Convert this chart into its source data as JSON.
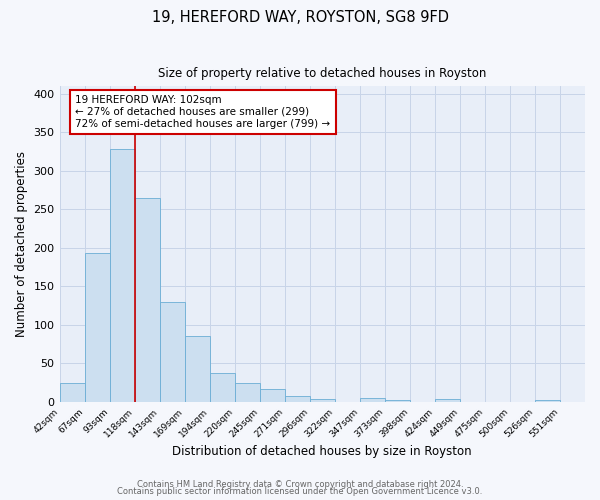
{
  "title": "19, HEREFORD WAY, ROYSTON, SG8 9FD",
  "subtitle": "Size of property relative to detached houses in Royston",
  "xlabel": "Distribution of detached houses by size in Royston",
  "ylabel": "Number of detached properties",
  "bar_labels": [
    "42sqm",
    "67sqm",
    "93sqm",
    "118sqm",
    "143sqm",
    "169sqm",
    "194sqm",
    "220sqm",
    "245sqm",
    "271sqm",
    "296sqm",
    "322sqm",
    "347sqm",
    "373sqm",
    "398sqm",
    "424sqm",
    "449sqm",
    "475sqm",
    "500sqm",
    "526sqm",
    "551sqm"
  ],
  "bar_values": [
    25,
    193,
    328,
    265,
    130,
    86,
    38,
    25,
    17,
    8,
    4,
    0,
    5,
    3,
    0,
    4,
    0,
    0,
    0,
    3,
    0
  ],
  "bar_color": "#ccdff0",
  "bar_edge_color": "#6aadd5",
  "red_line_x": 2,
  "annotation_line1": "19 HEREFORD WAY: 102sqm",
  "annotation_line2": "← 27% of detached houses are smaller (299)",
  "annotation_line3": "72% of semi-detached houses are larger (799) →",
  "annotation_box_color": "#ffffff",
  "annotation_box_edgecolor": "#cc0000",
  "ylim": [
    0,
    410
  ],
  "yticks": [
    0,
    50,
    100,
    150,
    200,
    250,
    300,
    350,
    400
  ],
  "grid_color": "#c8d4e8",
  "bg_color": "#e8eef8",
  "fig_bg_color": "#f5f7fc",
  "footer1": "Contains HM Land Registry data © Crown copyright and database right 2024.",
  "footer2": "Contains public sector information licensed under the Open Government Licence v3.0."
}
